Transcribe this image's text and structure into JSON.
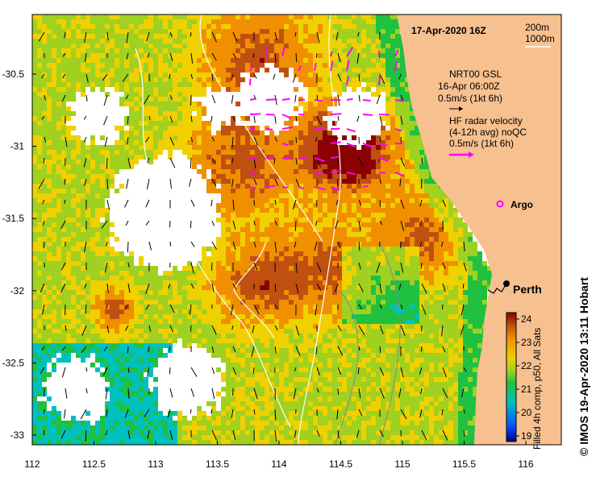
{
  "map": {
    "date_title": "17-Apr-2020 16Z",
    "isobaths": [
      "200m",
      "1000m"
    ],
    "gsl_title": "NRT00 GSL",
    "gsl_time": "16-Apr 06:00Z",
    "gsl_scale": "0.5m/s (1kt 6h)",
    "hf_title": "HF radar velocity",
    "hf_sub": "(4-12h avg) noQC",
    "hf_scale": "0.5m/s (1kt 6h)",
    "argo_label": "Argo",
    "city_label": "Perth",
    "credit": "© IMOS 19-Apr-2020 13:11 Hobart",
    "colorbar_caption": "Filled 4h comp, p50, All Sats",
    "colorbar_ticks": [
      "24",
      "23",
      "22",
      "21",
      "20",
      "19"
    ],
    "x_ticks": [
      "112",
      "112.5",
      "113",
      "113.5",
      "114",
      "114.5",
      "115",
      "115.5",
      "116"
    ],
    "y_ticks": [
      "-30.5",
      "-31",
      "-31.5",
      "-32",
      "-32.5",
      "-33"
    ],
    "colors": {
      "land": "#f7c08f",
      "sst_scale": [
        "#000080",
        "#0050ff",
        "#00c0c0",
        "#20c040",
        "#a0d020",
        "#f0d000",
        "#f09000",
        "#c05010",
        "#8b0000"
      ],
      "radar_arrow": "#ff00ff"
    }
  }
}
